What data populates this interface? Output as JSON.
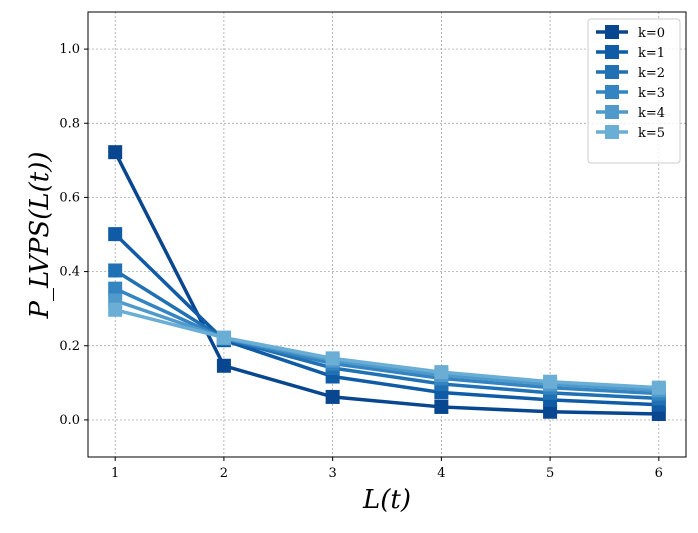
{
  "chart_data": {
    "type": "line",
    "title": "",
    "xlabel": "L(t)",
    "ylabel": "P_LVPS(L(t))",
    "x": [
      1,
      2,
      3,
      4,
      5,
      6
    ],
    "xlim": [
      0.75,
      6.25
    ],
    "ylim": [
      -0.1,
      1.1
    ],
    "xticks": [
      "1",
      "2",
      "3",
      "4",
      "5",
      "6"
    ],
    "yticks": [
      "0.0",
      "0.2",
      "0.4",
      "0.6",
      "0.8",
      "1.0"
    ],
    "grid": true,
    "legend_position": "top-right",
    "marker": "square",
    "series": [
      {
        "name": "k=0",
        "color": "#08468f",
        "values": [
          0.722,
          0.146,
          0.062,
          0.035,
          0.022,
          0.016
        ]
      },
      {
        "name": "k=1",
        "color": "#0f5ba6",
        "values": [
          0.501,
          0.215,
          0.117,
          0.074,
          0.054,
          0.041
        ]
      },
      {
        "name": "k=2",
        "color": "#2070b4",
        "values": [
          0.403,
          0.219,
          0.14,
          0.097,
          0.073,
          0.058
        ]
      },
      {
        "name": "k=3",
        "color": "#3484c1",
        "values": [
          0.354,
          0.22,
          0.152,
          0.112,
          0.087,
          0.071
        ]
      },
      {
        "name": "k=4",
        "color": "#4f9acb",
        "values": [
          0.322,
          0.221,
          0.16,
          0.121,
          0.096,
          0.08
        ]
      },
      {
        "name": "k=5",
        "color": "#6aaed6",
        "values": [
          0.297,
          0.222,
          0.166,
          0.129,
          0.103,
          0.087
        ]
      }
    ]
  }
}
